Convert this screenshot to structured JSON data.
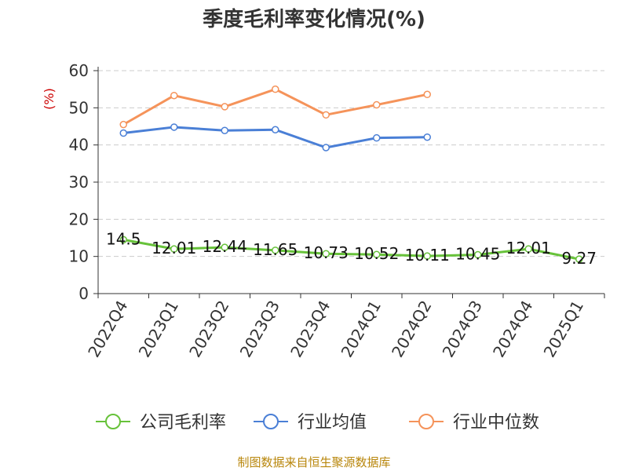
{
  "chart_data": {
    "type": "line",
    "title": "季度毛利率变化情况(%)",
    "ylabel": "(%)",
    "xlabel": "",
    "categories": [
      "2022Q4",
      "2023Q1",
      "2023Q2",
      "2023Q3",
      "2023Q4",
      "2024Q1",
      "2024Q2",
      "2024Q3",
      "2024Q4",
      "2025Q1"
    ],
    "yticks": [
      "0",
      "10",
      "20",
      "30",
      "40",
      "50",
      "60"
    ],
    "ylim": [
      0,
      60
    ],
    "grid": true,
    "legend_position": "bottom",
    "series": [
      {
        "name": "公司毛利率",
        "color": "#67c23a",
        "values": [
          14.5,
          12.01,
          12.44,
          11.65,
          10.73,
          10.52,
          10.11,
          10.45,
          12.01,
          9.27
        ],
        "labels": [
          "14.5",
          "12.01",
          "12.44",
          "11.65",
          "10.73",
          "10.52",
          "10.11",
          "10.45",
          "12.01",
          "9.27"
        ]
      },
      {
        "name": "行业均值",
        "color": "#4a7fd6",
        "values": [
          43.2,
          44.8,
          43.9,
          44.1,
          39.3,
          41.9,
          42.1,
          null,
          null,
          null
        ]
      },
      {
        "name": "行业中位数",
        "color": "#f5935a",
        "values": [
          45.5,
          53.3,
          50.3,
          55.0,
          48.1,
          50.8,
          53.6,
          null,
          null,
          null
        ]
      }
    ]
  },
  "footer": {
    "source": "制图数据来自恒生聚源数据库"
  }
}
